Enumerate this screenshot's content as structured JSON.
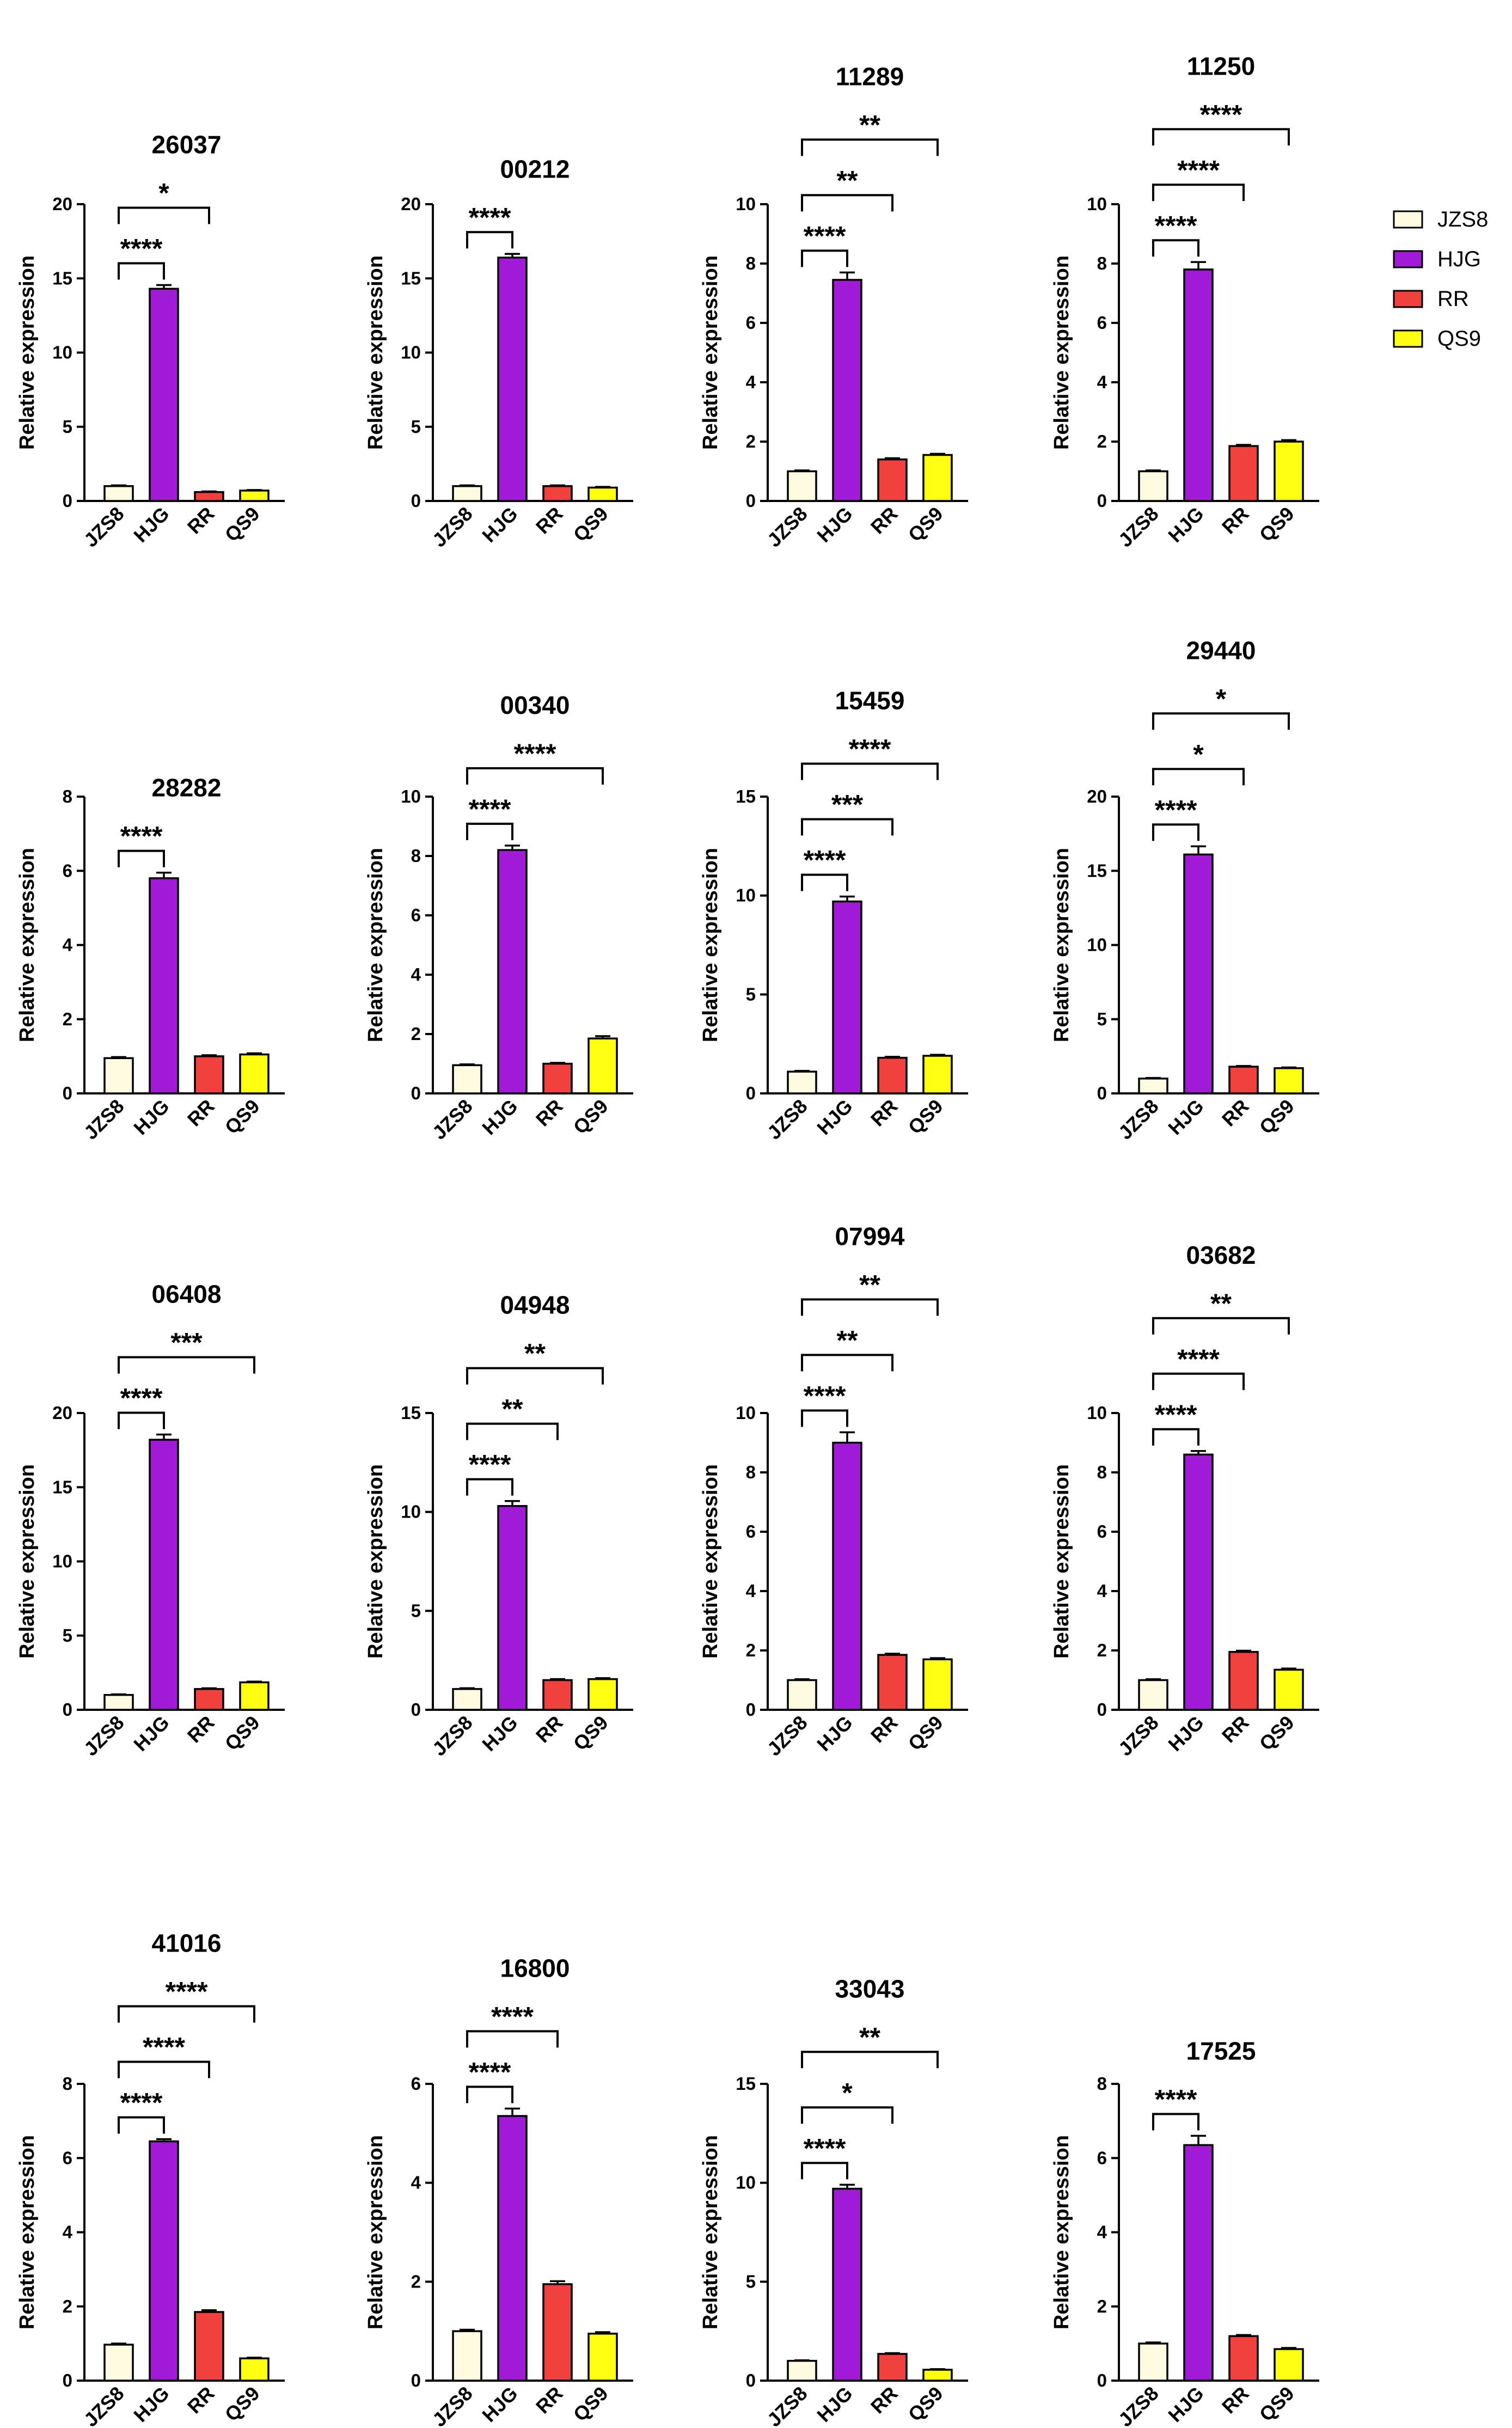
{
  "colors": {
    "JZS8": "#fffbe0",
    "HJG": "#a11ad6",
    "RR": "#f0413f",
    "QS9": "#ffff12"
  },
  "legend": {
    "items": [
      "JZS8",
      "HJG",
      "RR",
      "QS9"
    ]
  },
  "chart_data": [
    {
      "type": "bar",
      "title": "26037",
      "ylabel": "Relative expression",
      "categories": [
        "JZS8",
        "HJG",
        "RR",
        "QS9"
      ],
      "values": [
        1.0,
        14.3,
        0.6,
        0.7
      ],
      "errors": [
        0.05,
        0.25,
        0.04,
        0.04
      ],
      "ylim": [
        0,
        20
      ],
      "yticks": [
        0,
        5,
        10,
        15,
        20
      ],
      "significance": [
        {
          "to": "HJG",
          "label": "****"
        },
        {
          "to": "RR",
          "label": "*"
        }
      ]
    },
    {
      "type": "bar",
      "title": "00212",
      "ylabel": "Relative expression",
      "categories": [
        "JZS8",
        "HJG",
        "RR",
        "QS9"
      ],
      "values": [
        1.0,
        16.4,
        1.0,
        0.9
      ],
      "errors": [
        0.05,
        0.25,
        0.05,
        0.05
      ],
      "ylim": [
        0,
        20
      ],
      "yticks": [
        0,
        5,
        10,
        15,
        20
      ],
      "significance": [
        {
          "to": "HJG",
          "label": "****"
        }
      ]
    },
    {
      "type": "bar",
      "title": "11289",
      "ylabel": "Relative expression",
      "categories": [
        "JZS8",
        "HJG",
        "RR",
        "QS9"
      ],
      "values": [
        1.0,
        7.45,
        1.4,
        1.55
      ],
      "errors": [
        0.03,
        0.25,
        0.04,
        0.04
      ],
      "ylim": [
        0,
        10
      ],
      "yticks": [
        0,
        2,
        4,
        6,
        8,
        10
      ],
      "significance": [
        {
          "to": "HJG",
          "label": "****"
        },
        {
          "to": "RR",
          "label": "**"
        },
        {
          "to": "QS9",
          "label": "**"
        }
      ]
    },
    {
      "type": "bar",
      "title": "11250",
      "ylabel": "Relative expression",
      "categories": [
        "JZS8",
        "HJG",
        "RR",
        "QS9"
      ],
      "values": [
        1.0,
        7.8,
        1.85,
        2.0
      ],
      "errors": [
        0.03,
        0.25,
        0.04,
        0.05
      ],
      "ylim": [
        0,
        10
      ],
      "yticks": [
        0,
        2,
        4,
        6,
        8,
        10
      ],
      "significance": [
        {
          "to": "HJG",
          "label": "****"
        },
        {
          "to": "RR",
          "label": "****"
        },
        {
          "to": "QS9",
          "label": "****"
        }
      ]
    },
    {
      "type": "bar",
      "title": "28282",
      "ylabel": "Relative expression",
      "categories": [
        "JZS8",
        "HJG",
        "RR",
        "QS9"
      ],
      "values": [
        0.95,
        5.8,
        1.0,
        1.05
      ],
      "errors": [
        0.03,
        0.15,
        0.03,
        0.03
      ],
      "ylim": [
        0,
        8
      ],
      "yticks": [
        0,
        2,
        4,
        6,
        8
      ],
      "significance": [
        {
          "to": "HJG",
          "label": "****"
        }
      ]
    },
    {
      "type": "bar",
      "title": "00340",
      "ylabel": "Relative expression",
      "categories": [
        "JZS8",
        "HJG",
        "RR",
        "QS9"
      ],
      "values": [
        0.95,
        8.2,
        1.0,
        1.85
      ],
      "errors": [
        0.03,
        0.15,
        0.03,
        0.08
      ],
      "ylim": [
        0,
        10
      ],
      "yticks": [
        0,
        2,
        4,
        6,
        8,
        10
      ],
      "significance": [
        {
          "to": "HJG",
          "label": "****"
        },
        {
          "to": "QS9",
          "label": "****"
        }
      ]
    },
    {
      "type": "bar",
      "title": "15459",
      "ylabel": "Relative expression",
      "categories": [
        "JZS8",
        "HJG",
        "RR",
        "QS9"
      ],
      "values": [
        1.1,
        9.7,
        1.8,
        1.9
      ],
      "errors": [
        0.04,
        0.25,
        0.05,
        0.05
      ],
      "ylim": [
        0,
        15
      ],
      "yticks": [
        0,
        5,
        10,
        15
      ],
      "significance": [
        {
          "to": "HJG",
          "label": "****"
        },
        {
          "to": "RR",
          "label": "***"
        },
        {
          "to": "QS9",
          "label": "****"
        }
      ]
    },
    {
      "type": "bar",
      "title": "29440",
      "ylabel": "Relative expression",
      "categories": [
        "JZS8",
        "HJG",
        "RR",
        "QS9"
      ],
      "values": [
        1.0,
        16.1,
        1.8,
        1.7
      ],
      "errors": [
        0.04,
        0.55,
        0.05,
        0.05
      ],
      "ylim": [
        0,
        20
      ],
      "yticks": [
        0,
        5,
        10,
        15,
        20
      ],
      "significance": [
        {
          "to": "HJG",
          "label": "****"
        },
        {
          "to": "RR",
          "label": "*"
        },
        {
          "to": "QS9",
          "label": "*"
        }
      ]
    },
    {
      "type": "bar",
      "title": "06408",
      "ylabel": "Relative expression",
      "categories": [
        "JZS8",
        "HJG",
        "RR",
        "QS9"
      ],
      "values": [
        1.0,
        18.2,
        1.4,
        1.85
      ],
      "errors": [
        0.04,
        0.35,
        0.05,
        0.05
      ],
      "ylim": [
        0,
        20
      ],
      "yticks": [
        0,
        5,
        10,
        15,
        20
      ],
      "significance": [
        {
          "to": "HJG",
          "label": "****"
        },
        {
          "to": "QS9",
          "label": "***"
        }
      ]
    },
    {
      "type": "bar",
      "title": "04948",
      "ylabel": "Relative expression",
      "categories": [
        "JZS8",
        "HJG",
        "RR",
        "QS9"
      ],
      "values": [
        1.05,
        10.3,
        1.5,
        1.55
      ],
      "errors": [
        0.04,
        0.25,
        0.05,
        0.05
      ],
      "ylim": [
        0,
        15
      ],
      "yticks": [
        0,
        5,
        10,
        15
      ],
      "significance": [
        {
          "to": "HJG",
          "label": "****"
        },
        {
          "to": "RR",
          "label": "**"
        },
        {
          "to": "QS9",
          "label": "**"
        }
      ]
    },
    {
      "type": "bar",
      "title": "07994",
      "ylabel": "Relative expression",
      "categories": [
        "JZS8",
        "HJG",
        "RR",
        "QS9"
      ],
      "values": [
        1.0,
        9.0,
        1.85,
        1.7
      ],
      "errors": [
        0.03,
        0.35,
        0.04,
        0.04
      ],
      "ylim": [
        0,
        10
      ],
      "yticks": [
        0,
        2,
        4,
        6,
        8,
        10
      ],
      "significance": [
        {
          "to": "HJG",
          "label": "****"
        },
        {
          "to": "RR",
          "label": "**"
        },
        {
          "to": "QS9",
          "label": "**"
        }
      ]
    },
    {
      "type": "bar",
      "title": "03682",
      "ylabel": "Relative expression",
      "categories": [
        "JZS8",
        "HJG",
        "RR",
        "QS9"
      ],
      "values": [
        1.0,
        8.6,
        1.95,
        1.35
      ],
      "errors": [
        0.03,
        0.12,
        0.04,
        0.04
      ],
      "ylim": [
        0,
        10
      ],
      "yticks": [
        0,
        2,
        4,
        6,
        8,
        10
      ],
      "significance": [
        {
          "to": "HJG",
          "label": "****"
        },
        {
          "to": "RR",
          "label": "****"
        },
        {
          "to": "QS9",
          "label": "**"
        }
      ]
    },
    {
      "type": "bar",
      "title": "41016",
      "ylabel": "Relative expression",
      "categories": [
        "JZS8",
        "HJG",
        "RR",
        "QS9"
      ],
      "values": [
        0.97,
        6.45,
        1.85,
        0.6
      ],
      "errors": [
        0.03,
        0.06,
        0.05,
        0.02
      ],
      "ylim": [
        0,
        8
      ],
      "yticks": [
        0,
        2,
        4,
        6,
        8
      ],
      "significance": [
        {
          "to": "HJG",
          "label": "****"
        },
        {
          "to": "RR",
          "label": "****"
        },
        {
          "to": "QS9",
          "label": "****"
        }
      ]
    },
    {
      "type": "bar",
      "title": "16800",
      "ylabel": "Relative expression",
      "categories": [
        "JZS8",
        "HJG",
        "RR",
        "QS9"
      ],
      "values": [
        1.0,
        5.35,
        1.95,
        0.95
      ],
      "errors": [
        0.03,
        0.15,
        0.06,
        0.03
      ],
      "ylim": [
        0,
        6
      ],
      "yticks": [
        0,
        2,
        4,
        6
      ],
      "significance": [
        {
          "to": "HJG",
          "label": "****"
        },
        {
          "to": "RR",
          "label": "****"
        }
      ]
    },
    {
      "type": "bar",
      "title": "33043",
      "ylabel": "Relative expression",
      "categories": [
        "JZS8",
        "HJG",
        "RR",
        "QS9"
      ],
      "values": [
        1.0,
        9.7,
        1.35,
        0.55
      ],
      "errors": [
        0.03,
        0.2,
        0.04,
        0.03
      ],
      "ylim": [
        0,
        15
      ],
      "yticks": [
        0,
        5,
        10,
        15
      ],
      "significance": [
        {
          "to": "HJG",
          "label": "****"
        },
        {
          "to": "RR",
          "label": "*"
        },
        {
          "to": "QS9",
          "label": "**"
        }
      ]
    },
    {
      "type": "bar",
      "title": "17525",
      "ylabel": "Relative expression",
      "categories": [
        "JZS8",
        "HJG",
        "RR",
        "QS9"
      ],
      "values": [
        1.0,
        6.35,
        1.2,
        0.85
      ],
      "errors": [
        0.03,
        0.25,
        0.03,
        0.03
      ],
      "ylim": [
        0,
        8
      ],
      "yticks": [
        0,
        2,
        4,
        6,
        8
      ],
      "significance": [
        {
          "to": "HJG",
          "label": "****"
        }
      ]
    }
  ]
}
